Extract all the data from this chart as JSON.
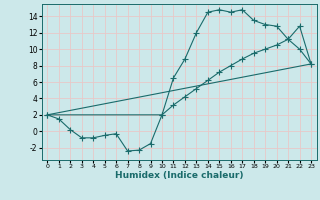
{
  "xlabel": "Humidex (Indice chaleur)",
  "bg_color": "#cce8ea",
  "grid_color": "#e8c8c8",
  "line_color": "#1a6b6b",
  "xlim": [
    -0.5,
    23.5
  ],
  "ylim": [
    -3.5,
    15.5
  ],
  "xticks": [
    0,
    1,
    2,
    3,
    4,
    5,
    6,
    7,
    8,
    9,
    10,
    11,
    12,
    13,
    14,
    15,
    16,
    17,
    18,
    19,
    20,
    21,
    22,
    23
  ],
  "yticks": [
    -2,
    0,
    2,
    4,
    6,
    8,
    10,
    12,
    14
  ],
  "line1_x": [
    0,
    1,
    2,
    3,
    4,
    5,
    6,
    7,
    8,
    9,
    10,
    11,
    12,
    13,
    14,
    15,
    16,
    17,
    18,
    19,
    20,
    21,
    22,
    23
  ],
  "line1_y": [
    2.0,
    1.5,
    0.2,
    -0.8,
    -0.8,
    -0.5,
    -0.3,
    -2.4,
    -2.3,
    -1.5,
    2.0,
    6.5,
    8.8,
    12.0,
    14.5,
    14.8,
    14.5,
    14.8,
    13.5,
    13.0,
    12.8,
    11.2,
    10.0,
    8.2
  ],
  "line2_x": [
    0,
    10,
    11,
    12,
    13,
    14,
    15,
    16,
    17,
    18,
    19,
    20,
    21,
    22,
    23
  ],
  "line2_y": [
    2.0,
    2.0,
    3.2,
    4.2,
    5.2,
    6.2,
    7.2,
    8.0,
    8.8,
    9.5,
    10.0,
    10.5,
    11.2,
    12.8,
    8.2
  ],
  "line3_x": [
    0,
    23
  ],
  "line3_y": [
    2.0,
    8.2
  ]
}
